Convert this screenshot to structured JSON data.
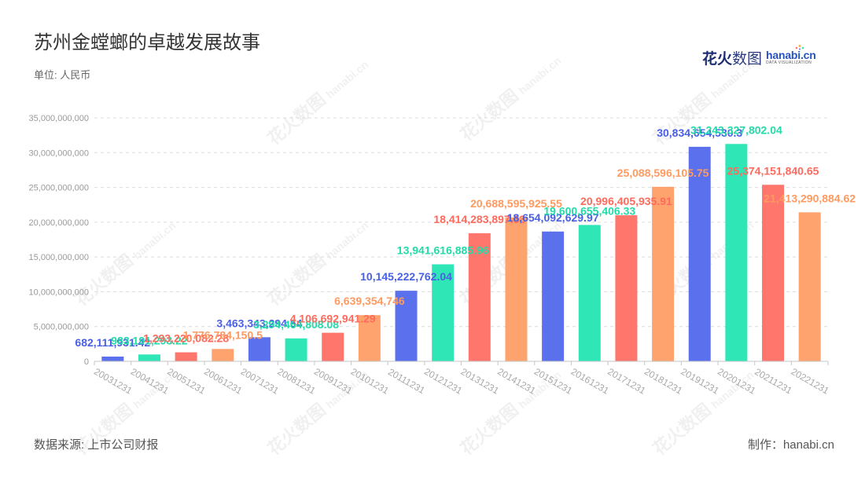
{
  "chart_data": {
    "type": "bar",
    "title": "苏州金螳螂的卓越发展故事",
    "subtitle": "单位: 人民币",
    "categories": [
      "20031231",
      "20041231",
      "20051231",
      "20061231",
      "20071231",
      "20081231",
      "20091231",
      "20101231",
      "20111231",
      "20121231",
      "20131231",
      "20141231",
      "20151231",
      "20161231",
      "20171231",
      "20181231",
      "20191231",
      "20201231",
      "20211231",
      "20221231"
    ],
    "values": [
      682111931.42,
      983191293.22,
      1293220082.28,
      1776784150.5,
      3463343294.64,
      3294464808.08,
      4106692941.29,
      6639354746,
      10145222762.04,
      13941616885.96,
      18414283897.63,
      20688595925.55,
      18654092629.97,
      19600655406.33,
      20996405935.91,
      25088596105.75,
      30834654530.3,
      31243327802.04,
      25374151840.65,
      21413290884.62
    ],
    "value_labels": [
      "682,111,931.42",
      "983,191,293.22",
      "1,293,220,082.28",
      "1,776,784,150.5",
      "3,463,343,294.64",
      "3,294,464,808.08",
      "4,106,692,941.29",
      "6,639,354,746",
      "10,145,222,762.04",
      "13,941,616,885.96",
      "18,414,283,897.63",
      "20,688,595,925.55",
      "18,654,092,629.97",
      "19,600,655,406.33",
      "20,996,405,935.91",
      "25,088,596,105.75",
      "30,834,654,530.3",
      "31,243,327,802.04",
      "25,374,151,840.65",
      "21,413,290,884.62"
    ],
    "y_ticks": [
      0,
      5000000000,
      10000000000,
      15000000000,
      20000000000,
      25000000000,
      30000000000,
      35000000000
    ],
    "y_tick_labels": [
      "0",
      "5,000,000,000",
      "10,000,000,000",
      "15,000,000,000",
      "20,000,000,000",
      "25,000,000,000",
      "30,000,000,000",
      "35,000,000,000"
    ],
    "ylim": [
      0,
      35000000000
    ],
    "grid": true,
    "bar_colors": [
      "#5b70ec",
      "#2ee6b6",
      "#ff766d",
      "#ffa36e"
    ],
    "label_colors": [
      "#4a60e4",
      "#22dba8",
      "#ff6a5c",
      "#ff9a60"
    ]
  },
  "logo": {
    "cn_bold": "花火",
    "cn": "数图",
    "en": "hanabi.cn",
    "tag": "DATA VISUALIZATION"
  },
  "watermark": {
    "cn": "花火数图",
    "en": "hanabi.cn"
  },
  "footer": {
    "source": "数据来源: 上市公司财报",
    "credit": "制作：hanabi.cn"
  }
}
